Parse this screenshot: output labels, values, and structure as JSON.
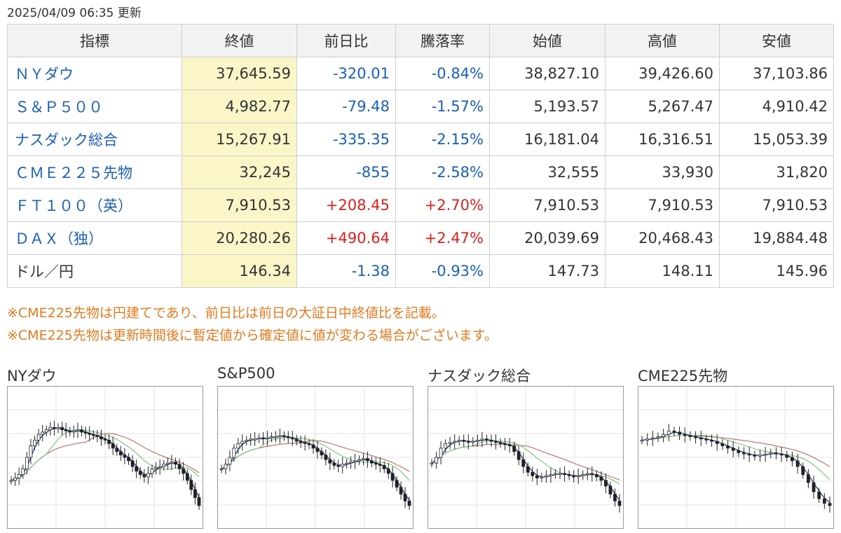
{
  "updated": "2025/04/09 06:35 更新",
  "table": {
    "headers": [
      "指標",
      "終値",
      "前日比",
      "騰落率",
      "始値",
      "高値",
      "安値"
    ],
    "rows": [
      {
        "name": "ＮＹダウ",
        "close": "37,645.59",
        "change": "-320.01",
        "pct": "-0.84%",
        "open": "38,827.10",
        "high": "39,426.60",
        "low": "37,103.86",
        "dir": "neg",
        "link": true
      },
      {
        "name": "Ｓ＆Ｐ５００",
        "close": "4,982.77",
        "change": "-79.48",
        "pct": "-1.57%",
        "open": "5,193.57",
        "high": "5,267.47",
        "low": "4,910.42",
        "dir": "neg",
        "link": true
      },
      {
        "name": "ナスダック総合",
        "close": "15,267.91",
        "change": "-335.35",
        "pct": "-2.15%",
        "open": "16,181.04",
        "high": "16,316.51",
        "low": "15,053.39",
        "dir": "neg",
        "link": true
      },
      {
        "name": "ＣＭＥ２２５先物",
        "close": "32,245",
        "change": "-855",
        "pct": "-2.58%",
        "open": "32,555",
        "high": "33,930",
        "low": "31,820",
        "dir": "neg",
        "link": true
      },
      {
        "name": "ＦＴ１００（英）",
        "close": "7,910.53",
        "change": "+208.45",
        "pct": "+2.70%",
        "open": "7,910.53",
        "high": "7,910.53",
        "low": "7,910.53",
        "dir": "pos",
        "link": true
      },
      {
        "name": "ＤＡＸ（独）",
        "close": "20,280.26",
        "change": "+490.64",
        "pct": "+2.47%",
        "open": "20,039.69",
        "high": "20,468.43",
        "low": "19,884.48",
        "dir": "pos",
        "link": true
      },
      {
        "name": "ドル／円",
        "close": "146.34",
        "change": "-1.38",
        "pct": "-0.93%",
        "open": "147.73",
        "high": "148.11",
        "low": "145.96",
        "dir": "neg",
        "link": false
      }
    ]
  },
  "notes": [
    "※CME225先物は円建てであり、前日比は前日の大証日中終値比を記載。",
    "※CME225先物は更新時間後に暫定値から確定値に値が変わる場合がございます。"
  ],
  "colors": {
    "link": "#1a5fb4",
    "negative": "#1a5fb4",
    "positive": "#d8201c",
    "note": "#e07a1e",
    "close_bg": "#fbf6c8",
    "ma_short": "#1f3f8f",
    "ma_mid": "#6dbb6d",
    "ma_long": "#b05a5a"
  },
  "chart_data": [
    {
      "type": "line",
      "title": "NYダウ",
      "series": [
        {
          "values": [
            0.3,
            0.32,
            0.35,
            0.4,
            0.5,
            0.6,
            0.65,
            0.7,
            0.72,
            0.74,
            0.76,
            0.75,
            0.76,
            0.74,
            0.73,
            0.72,
            0.73,
            0.74,
            0.72,
            0.71,
            0.7,
            0.69,
            0.68,
            0.66,
            0.65,
            0.62,
            0.58,
            0.55,
            0.52,
            0.5,
            0.47,
            0.42,
            0.38,
            0.35,
            0.33,
            0.36,
            0.4,
            0.41,
            0.42,
            0.44,
            0.45,
            0.46,
            0.44,
            0.4,
            0.36,
            0.3,
            0.22,
            0.15,
            0.08
          ]
        }
      ]
    },
    {
      "type": "line",
      "title": "S&P500",
      "series": [
        {
          "values": [
            0.4,
            0.44,
            0.5,
            0.58,
            0.62,
            0.64,
            0.65,
            0.66,
            0.66,
            0.67,
            0.66,
            0.67,
            0.68,
            0.68,
            0.69,
            0.68,
            0.67,
            0.66,
            0.64,
            0.63,
            0.62,
            0.61,
            0.58,
            0.55,
            0.52,
            0.48,
            0.45,
            0.43,
            0.42,
            0.44,
            0.45,
            0.46,
            0.47,
            0.48,
            0.49,
            0.47,
            0.45,
            0.44,
            0.43,
            0.4,
            0.36,
            0.3,
            0.24,
            0.18,
            0.12,
            0.08
          ]
        }
      ]
    },
    {
      "type": "line",
      "title": "ナスダック総合",
      "series": [
        {
          "values": [
            0.45,
            0.5,
            0.58,
            0.62,
            0.63,
            0.64,
            0.65,
            0.64,
            0.63,
            0.64,
            0.65,
            0.66,
            0.65,
            0.64,
            0.63,
            0.62,
            0.61,
            0.6,
            0.55,
            0.48,
            0.42,
            0.37,
            0.34,
            0.32,
            0.33,
            0.34,
            0.35,
            0.36,
            0.36,
            0.35,
            0.34,
            0.33,
            0.34,
            0.35,
            0.36,
            0.35,
            0.33,
            0.3,
            0.25,
            0.18,
            0.12,
            0.08
          ]
        }
      ]
    },
    {
      "type": "line",
      "title": "CME225先物",
      "series": [
        {
          "values": [
            0.65,
            0.66,
            0.67,
            0.68,
            0.7,
            0.73,
            0.72,
            0.7,
            0.69,
            0.68,
            0.67,
            0.66,
            0.65,
            0.64,
            0.62,
            0.6,
            0.58,
            0.56,
            0.54,
            0.53,
            0.52,
            0.51,
            0.52,
            0.53,
            0.54,
            0.53,
            0.52,
            0.5,
            0.47,
            0.42,
            0.35,
            0.28,
            0.2,
            0.14,
            0.1,
            0.08
          ]
        }
      ]
    }
  ]
}
